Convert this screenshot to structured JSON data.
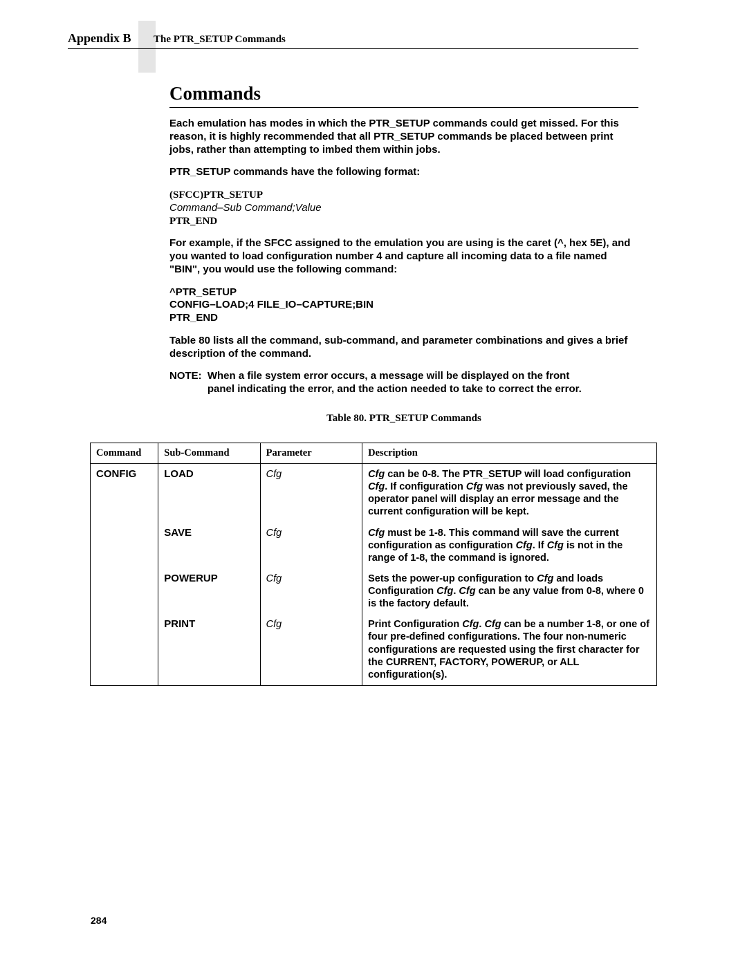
{
  "header": {
    "appendix": "Appendix  B",
    "title": "The PTR_SETUP Commands"
  },
  "section_heading": "Commands",
  "para1": "Each emulation has modes in which the PTR_SETUP commands could get missed. For this reason, it is highly recommended that all PTR_SETUP commands be placed between print jobs, rather than attempting to imbed them within jobs.",
  "para2": "PTR_SETUP commands have the following format:",
  "format": {
    "line1": "(SFCC)PTR_SETUP",
    "line2_cmd": "Command",
    "line2_dash": "–",
    "line2_sub": "Sub Command",
    "line2_semi": ";",
    "line2_val": "Value",
    "line3": "PTR_END"
  },
  "para3": "For example, if the SFCC assigned to the emulation you are using is the caret (^, hex 5E), and you wanted to load configuration number 4 and capture all incoming data to a file named \"BIN\", you would use the following command:",
  "example": {
    "l1": "^PTR_SETUP",
    "l2": "CONFIG–LOAD;4 FILE_IO–CAPTURE;BIN",
    "l3": "PTR_END"
  },
  "para4": "Table 80 lists all the command, sub-command, and parameter combinations and gives a brief description of the command.",
  "note_label": "NOTE:",
  "note_text": "When a file system error occurs, a message will be displayed on the front panel indicating the error, and the action needed to take to correct the error.",
  "table_caption": "Table 80. PTR_SETUP Commands",
  "table": {
    "headers": [
      "Command",
      "Sub-Command",
      "Parameter",
      "Description"
    ],
    "rows": [
      {
        "command": "CONFIG",
        "sub": "LOAD",
        "param": "Cfg",
        "desc_parts": [
          {
            "t": "Cfg",
            "i": true
          },
          {
            "t": " can be 0-8. The PTR_SETUP will load configuration "
          },
          {
            "t": "Cfg",
            "i": true
          },
          {
            "t": ". If configuration "
          },
          {
            "t": "Cfg",
            "i": true
          },
          {
            "t": " was not previously saved, the operator panel will display an error message and the current configuration will be kept."
          }
        ]
      },
      {
        "command": "",
        "sub": "SAVE",
        "param": "Cfg",
        "desc_parts": [
          {
            "t": "Cfg",
            "i": true
          },
          {
            "t": " must be 1-8. This command will save the current configuration as configuration "
          },
          {
            "t": "Cfg",
            "i": true
          },
          {
            "t": ". If "
          },
          {
            "t": "Cfg",
            "i": true
          },
          {
            "t": " is not in the range of 1-8, the command is ignored."
          }
        ]
      },
      {
        "command": "",
        "sub": "POWERUP",
        "param": "Cfg",
        "desc_parts": [
          {
            "t": "Sets the power-up configuration to "
          },
          {
            "t": "Cfg",
            "i": true
          },
          {
            "t": " and loads Configuration "
          },
          {
            "t": "Cfg",
            "i": true
          },
          {
            "t": ". "
          },
          {
            "t": "Cfg",
            "i": true
          },
          {
            "t": " can be any value from 0-8, where 0 is the factory default."
          }
        ]
      },
      {
        "command": "",
        "sub": "PRINT",
        "param": "Cfg",
        "desc_parts": [
          {
            "t": "Print Configuration "
          },
          {
            "t": "Cfg",
            "i": true
          },
          {
            "t": ". "
          },
          {
            "t": "Cfg",
            "i": true
          },
          {
            "t": " can be a number 1-8, or one of four pre-defined configurations. The four non-numeric configurations are requested using the first character for the CURRENT, FACTORY, POWERUP, or ALL configuration(s)."
          }
        ]
      }
    ]
  },
  "page_number": "284"
}
